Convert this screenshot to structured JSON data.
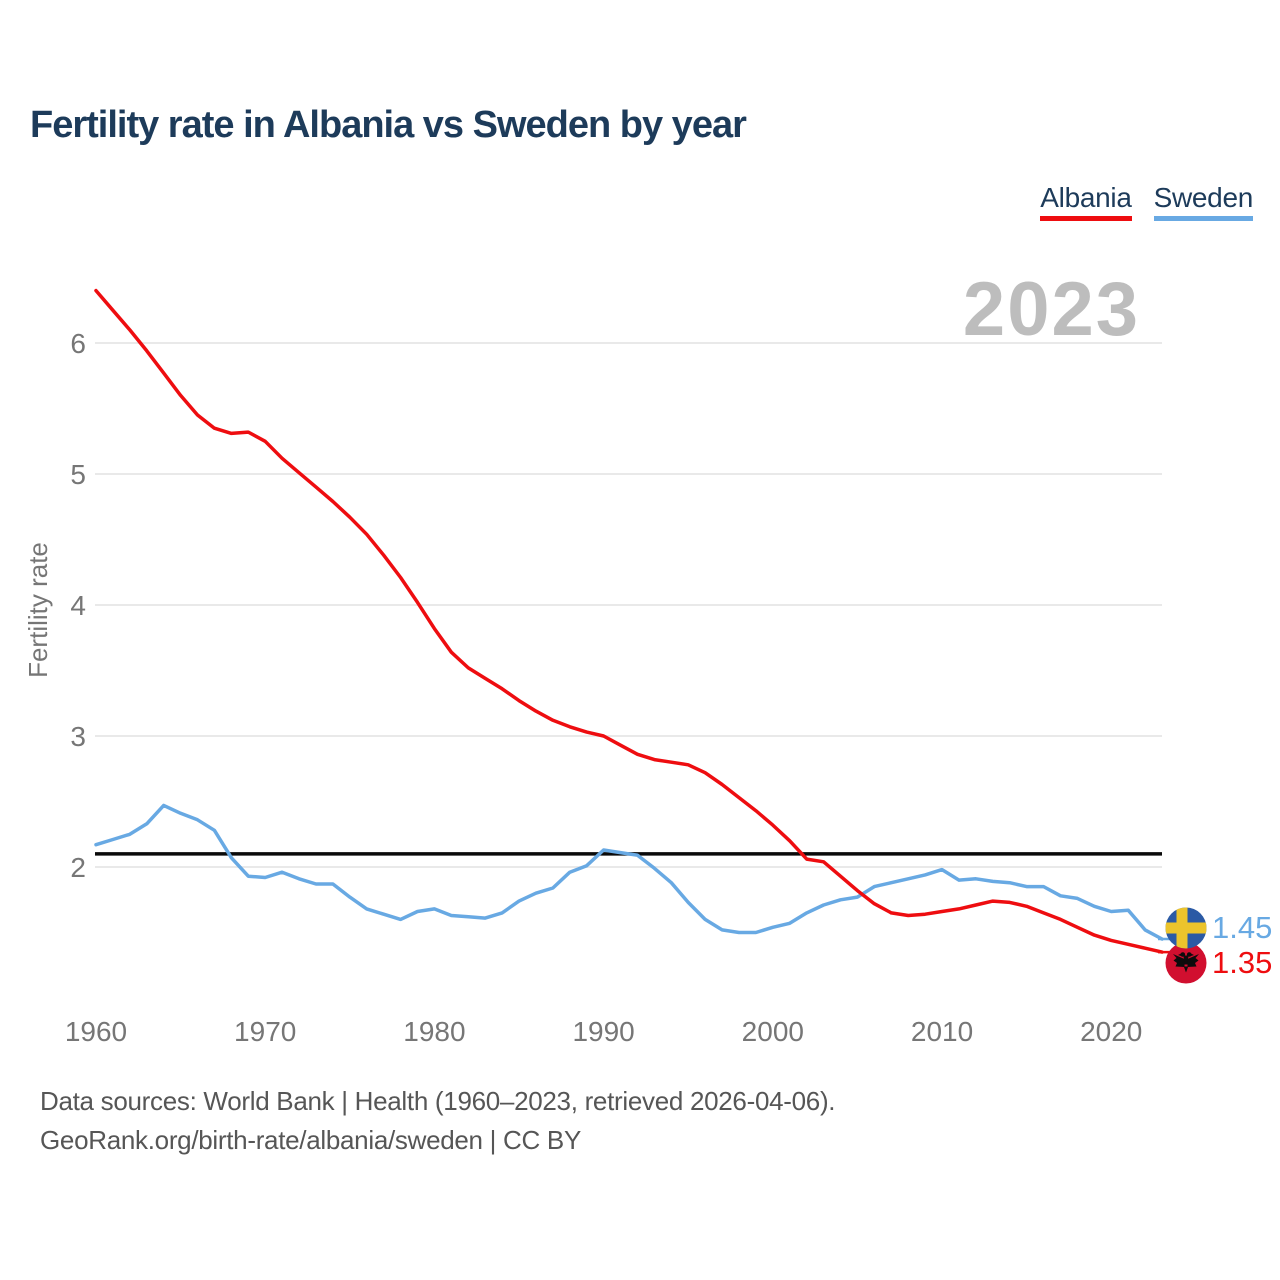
{
  "header": {
    "title": "Fertility rate in Albania vs Sweden by year"
  },
  "legend": {
    "items": [
      {
        "label": "Albania",
        "color": "#ee0d10"
      },
      {
        "label": "Sweden",
        "color": "#68a9e3"
      }
    ]
  },
  "watermark": "2023",
  "footer": {
    "line1": "Data sources: World Bank | Health (1960–2023, retrieved 2026-04-06).",
    "line2": "GeoRank.org/birth-rate/albania/sweden | CC BY"
  },
  "chart_data": {
    "type": "line",
    "title": "Fertility rate in Albania vs Sweden by year",
    "xlabel": "",
    "ylabel": "Fertility rate",
    "xlim": [
      1960,
      2023
    ],
    "ylim": [
      1.2,
      6.6
    ],
    "x_ticks": [
      1960,
      1970,
      1980,
      1990,
      2000,
      2010,
      2020
    ],
    "y_ticks": [
      2,
      3,
      4,
      5,
      6
    ],
    "grid": "horizontal",
    "legend_position": "top-right",
    "reference_line": {
      "value": 2.1,
      "color": "#0a0a0a"
    },
    "years": [
      1960,
      1961,
      1962,
      1963,
      1964,
      1965,
      1966,
      1967,
      1968,
      1969,
      1970,
      1971,
      1972,
      1973,
      1974,
      1975,
      1976,
      1977,
      1978,
      1979,
      1980,
      1981,
      1982,
      1983,
      1984,
      1985,
      1986,
      1987,
      1988,
      1989,
      1990,
      1991,
      1992,
      1993,
      1994,
      1995,
      1996,
      1997,
      1998,
      1999,
      2000,
      2001,
      2002,
      2003,
      2004,
      2005,
      2006,
      2007,
      2008,
      2009,
      2010,
      2011,
      2012,
      2013,
      2014,
      2015,
      2016,
      2017,
      2018,
      2019,
      2020,
      2021,
      2022,
      2023
    ],
    "series": [
      {
        "name": "Albania",
        "color": "#ee0d10",
        "flag": "albania",
        "end_label": "1.35",
        "values": [
          6.4,
          6.25,
          6.1,
          5.94,
          5.77,
          5.6,
          5.45,
          5.35,
          5.31,
          5.32,
          5.25,
          5.12,
          5.01,
          4.9,
          4.79,
          4.67,
          4.54,
          4.38,
          4.21,
          4.02,
          3.82,
          3.64,
          3.52,
          3.44,
          3.36,
          3.27,
          3.19,
          3.12,
          3.07,
          3.03,
          3.0,
          2.93,
          2.86,
          2.82,
          2.8,
          2.78,
          2.72,
          2.63,
          2.53,
          2.43,
          2.32,
          2.2,
          2.06,
          2.04,
          1.93,
          1.82,
          1.72,
          1.65,
          1.63,
          1.64,
          1.66,
          1.68,
          1.71,
          1.74,
          1.73,
          1.7,
          1.65,
          1.6,
          1.54,
          1.48,
          1.44,
          1.41,
          1.38,
          1.35
        ]
      },
      {
        "name": "Sweden",
        "color": "#68a9e3",
        "flag": "sweden",
        "end_label": "1.45",
        "values": [
          2.17,
          2.21,
          2.25,
          2.33,
          2.47,
          2.41,
          2.36,
          2.28,
          2.07,
          1.93,
          1.92,
          1.96,
          1.91,
          1.87,
          1.87,
          1.77,
          1.68,
          1.64,
          1.6,
          1.66,
          1.68,
          1.63,
          1.62,
          1.61,
          1.65,
          1.74,
          1.8,
          1.84,
          1.96,
          2.01,
          2.13,
          2.11,
          2.09,
          1.99,
          1.88,
          1.73,
          1.6,
          1.52,
          1.5,
          1.5,
          1.54,
          1.57,
          1.65,
          1.71,
          1.75,
          1.77,
          1.85,
          1.88,
          1.91,
          1.94,
          1.98,
          1.9,
          1.91,
          1.89,
          1.88,
          1.85,
          1.85,
          1.78,
          1.76,
          1.7,
          1.66,
          1.67,
          1.52,
          1.45
        ]
      }
    ]
  }
}
